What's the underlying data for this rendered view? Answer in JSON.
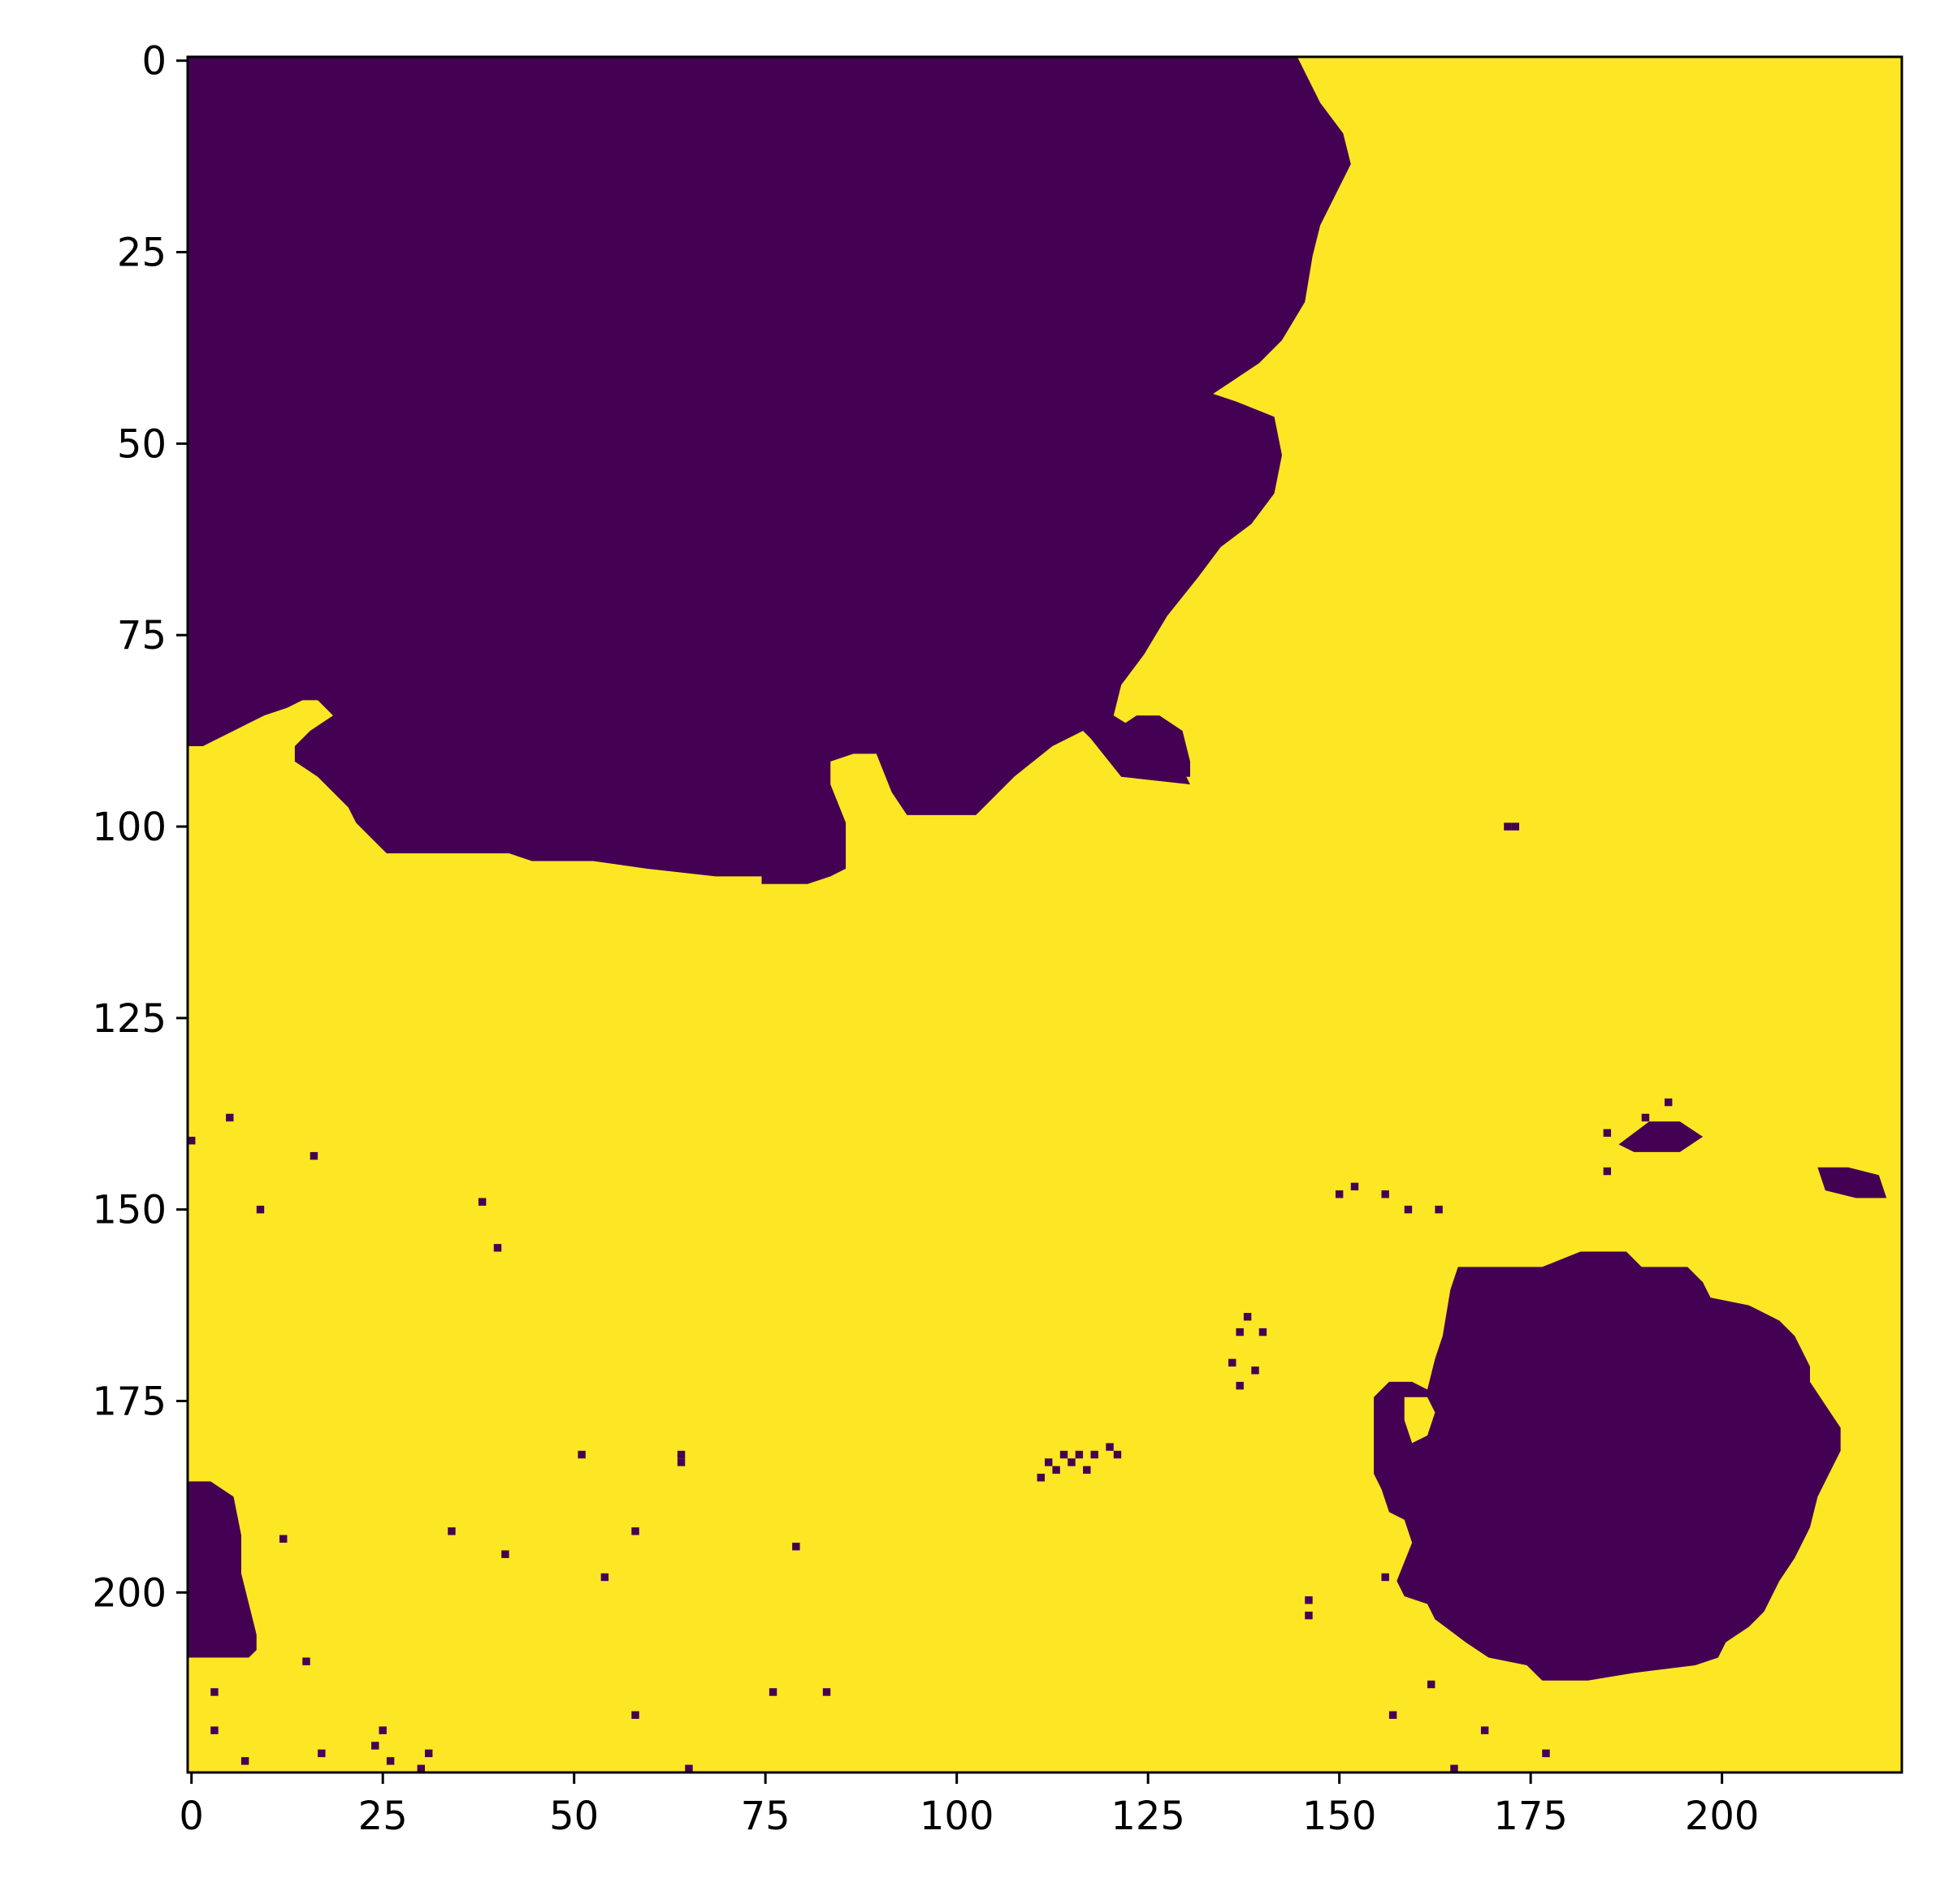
{
  "chart_data": {
    "type": "heatmap",
    "title": "",
    "xlabel": "",
    "ylabel": "",
    "xlim": [
      -0.5,
      223.5
    ],
    "ylim": [
      223.5,
      -0.5
    ],
    "x_ticks": [
      0,
      25,
      50,
      75,
      100,
      125,
      150,
      175,
      200
    ],
    "y_ticks": [
      0,
      25,
      50,
      75,
      100,
      125,
      150,
      175,
      200
    ],
    "x_tick_labels": [
      "0",
      "25",
      "50",
      "75",
      "100",
      "125",
      "150",
      "175",
      "200"
    ],
    "y_tick_labels": [
      "0",
      "25",
      "50",
      "75",
      "100",
      "125",
      "150",
      "175",
      "200"
    ],
    "grid": false,
    "colormap": "viridis",
    "value_colors": {
      "0": "#440154",
      "1": "#fde725"
    },
    "background_value": 1,
    "regions_value_0": [
      {
        "name": "top-left region",
        "outline": [
          [
            0,
            0
          ],
          [
            145,
            0
          ],
          [
            146,
            2
          ],
          [
            148,
            6
          ],
          [
            151,
            10
          ],
          [
            152,
            14
          ],
          [
            150,
            18
          ],
          [
            148,
            22
          ],
          [
            147,
            26
          ],
          [
            146,
            32
          ],
          [
            143,
            37
          ],
          [
            140,
            40
          ],
          [
            137,
            42
          ],
          [
            134,
            44
          ],
          [
            137,
            45
          ],
          [
            142,
            47
          ],
          [
            143,
            52
          ],
          [
            142,
            57
          ],
          [
            139,
            61
          ],
          [
            135,
            64
          ],
          [
            132,
            68
          ],
          [
            128,
            73
          ],
          [
            125,
            78
          ],
          [
            122,
            82
          ],
          [
            121,
            86
          ],
          [
            129,
            91
          ],
          [
            131,
            95
          ],
          [
            122,
            94
          ],
          [
            118,
            89
          ],
          [
            117,
            88
          ],
          [
            113,
            90
          ],
          [
            108,
            94
          ],
          [
            104,
            98
          ],
          [
            103,
            99
          ],
          [
            94,
            99
          ],
          [
            92,
            96
          ],
          [
            90,
            91
          ],
          [
            87,
            91
          ],
          [
            84,
            92
          ],
          [
            84,
            95
          ],
          [
            86,
            100
          ],
          [
            86,
            106
          ],
          [
            84,
            107
          ],
          [
            81,
            108
          ],
          [
            75,
            108
          ],
          [
            75,
            107
          ],
          [
            69,
            107
          ],
          [
            60,
            106
          ],
          [
            53,
            105
          ],
          [
            45,
            105
          ],
          [
            42,
            104
          ],
          [
            32,
            104
          ],
          [
            26,
            104
          ],
          [
            25,
            103
          ],
          [
            22,
            100
          ],
          [
            21,
            98
          ],
          [
            19,
            96
          ],
          [
            17,
            94
          ],
          [
            14,
            92
          ],
          [
            14,
            90
          ],
          [
            16,
            88
          ],
          [
            19,
            86
          ],
          [
            17,
            84
          ],
          [
            15,
            84
          ],
          [
            13,
            85
          ],
          [
            10,
            86
          ],
          [
            8,
            87
          ],
          [
            6,
            88
          ],
          [
            4,
            89
          ],
          [
            2,
            90
          ],
          [
            0,
            90
          ]
        ]
      },
      {
        "name": "lower-right blob",
        "outline": [
          [
            166,
            158
          ],
          [
            177,
            158
          ],
          [
            182,
            156
          ],
          [
            188,
            156
          ],
          [
            190,
            158
          ],
          [
            196,
            158
          ],
          [
            198,
            160
          ],
          [
            199,
            162
          ],
          [
            204,
            163
          ],
          [
            208,
            165
          ],
          [
            210,
            167
          ],
          [
            212,
            171
          ],
          [
            212,
            173
          ],
          [
            214,
            176
          ],
          [
            216,
            179
          ],
          [
            216,
            182
          ],
          [
            215,
            184
          ],
          [
            213,
            188
          ],
          [
            212,
            192
          ],
          [
            210,
            196
          ],
          [
            208,
            199
          ],
          [
            206,
            203
          ],
          [
            204,
            205
          ],
          [
            201,
            207
          ],
          [
            200,
            209
          ],
          [
            197,
            210
          ],
          [
            189,
            211
          ],
          [
            183,
            212
          ],
          [
            177,
            212
          ],
          [
            175,
            210
          ],
          [
            170,
            209
          ],
          [
            167,
            207
          ],
          [
            163,
            204
          ],
          [
            162,
            202
          ],
          [
            159,
            201
          ],
          [
            158,
            199
          ],
          [
            160,
            194
          ],
          [
            159,
            191
          ],
          [
            157,
            190
          ],
          [
            156,
            187
          ],
          [
            155,
            185
          ],
          [
            155,
            181
          ],
          [
            155,
            175
          ],
          [
            157,
            173
          ],
          [
            160,
            173
          ],
          [
            162,
            174
          ],
          [
            163,
            170
          ],
          [
            164,
            167
          ],
          [
            165,
            161
          ]
        ]
      },
      {
        "name": "lower-left region",
        "outline": [
          [
            0,
            186
          ],
          [
            3,
            186
          ],
          [
            6,
            188
          ],
          [
            7,
            193
          ],
          [
            7,
            198
          ],
          [
            8,
            202
          ],
          [
            9,
            206
          ],
          [
            9,
            208
          ],
          [
            8,
            209
          ],
          [
            4,
            209
          ],
          [
            0,
            209
          ]
        ]
      },
      {
        "name": "small blob near x=130",
        "outline": [
          [
            121,
            88
          ],
          [
            124,
            86
          ],
          [
            127,
            86
          ],
          [
            130,
            88
          ],
          [
            131,
            92
          ],
          [
            131,
            94
          ],
          [
            126,
            94
          ],
          [
            122,
            91
          ]
        ]
      },
      {
        "name": "blob near x=190 y=142",
        "outline": [
          [
            187,
            142
          ],
          [
            191,
            139
          ],
          [
            195,
            139
          ],
          [
            198,
            141
          ],
          [
            195,
            143
          ],
          [
            189,
            143
          ]
        ]
      },
      {
        "name": "blob near x=215 y=147",
        "outline": [
          [
            213,
            145
          ],
          [
            217,
            145
          ],
          [
            221,
            146
          ],
          [
            222,
            149
          ],
          [
            218,
            149
          ],
          [
            214,
            148
          ]
        ]
      }
    ],
    "holes_value_1": [
      {
        "name": "hole in lower-right blob",
        "outline": [
          [
            159,
            175
          ],
          [
            162,
            175
          ],
          [
            163,
            177
          ],
          [
            162,
            180
          ],
          [
            160,
            181
          ],
          [
            159,
            178
          ]
        ]
      }
    ],
    "specks_value_0": [
      [
        172,
        100
      ],
      [
        173,
        100
      ],
      [
        5,
        138
      ],
      [
        16,
        143
      ],
      [
        9,
        150
      ],
      [
        38,
        149
      ],
      [
        40,
        155
      ],
      [
        0,
        141
      ],
      [
        159,
        150
      ],
      [
        156,
        148
      ],
      [
        163,
        150
      ],
      [
        150,
        148
      ],
      [
        152,
        147
      ],
      [
        51,
        182
      ],
      [
        64,
        182
      ],
      [
        64,
        183
      ],
      [
        34,
        192
      ],
      [
        58,
        192
      ],
      [
        12,
        193
      ],
      [
        41,
        195
      ],
      [
        79,
        194
      ],
      [
        54,
        198
      ],
      [
        15,
        209
      ],
      [
        76,
        213
      ],
      [
        83,
        213
      ],
      [
        58,
        216
      ],
      [
        3,
        213
      ],
      [
        3,
        218
      ],
      [
        7,
        222
      ],
      [
        25,
        218
      ],
      [
        24,
        220
      ],
      [
        17,
        221
      ],
      [
        31,
        221
      ],
      [
        30,
        223
      ],
      [
        26,
        222
      ],
      [
        65,
        223
      ],
      [
        146,
        201
      ],
      [
        146,
        203
      ],
      [
        156,
        198
      ],
      [
        162,
        212
      ],
      [
        157,
        216
      ],
      [
        169,
        218
      ],
      [
        165,
        223
      ],
      [
        177,
        221
      ],
      [
        138,
        164
      ],
      [
        137,
        166
      ],
      [
        140,
        166
      ],
      [
        136,
        170
      ],
      [
        139,
        171
      ],
      [
        137,
        173
      ],
      [
        112,
        183
      ],
      [
        114,
        182
      ],
      [
        116,
        182
      ],
      [
        118,
        182
      ],
      [
        120,
        181
      ],
      [
        121,
        182
      ],
      [
        111,
        185
      ],
      [
        113,
        184
      ],
      [
        117,
        184
      ],
      [
        115,
        183
      ],
      [
        185,
        140
      ],
      [
        193,
        136
      ],
      [
        185,
        145
      ],
      [
        190,
        138
      ]
    ]
  }
}
